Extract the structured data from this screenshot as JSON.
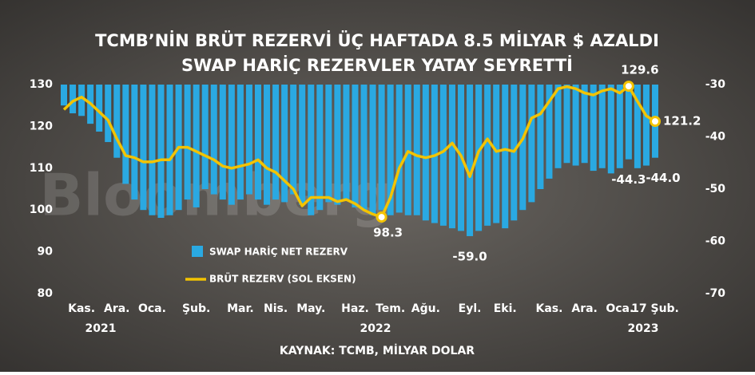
{
  "chart_data": {
    "type": "bar-line",
    "title": "TCMB’NİN BRÜT REZERVİ ÜÇ HAFTADA 8.5 MİLYAR $ AZALDI",
    "subtitle": "SWAP HARİÇ REZERVLER YATAY SEYRETTİ",
    "source": "KAYNAK: TCMB, MİLYAR DOLAR",
    "watermark": "Bloomberg",
    "year_labels": [
      "2021",
      "2022",
      "2023"
    ],
    "categories": [
      null,
      null,
      "Kas.",
      null,
      null,
      null,
      "Ara.",
      null,
      null,
      null,
      "Oca.",
      null,
      null,
      null,
      null,
      "Şub.",
      null,
      null,
      null,
      null,
      "Mar.",
      null,
      null,
      null,
      "Nis.",
      null,
      null,
      null,
      "May.",
      null,
      null,
      null,
      null,
      "Haz.",
      null,
      null,
      null,
      "Tem.",
      null,
      null,
      null,
      "Ağu.",
      null,
      null,
      null,
      null,
      "Eyl.",
      null,
      null,
      null,
      "Eki.",
      null,
      null,
      null,
      null,
      "Kas.",
      null,
      null,
      null,
      "Ara.",
      null,
      null,
      null,
      "Oca.",
      null,
      null,
      null,
      "17 Şub."
    ],
    "series": [
      {
        "name": "SWAP HARİÇ NET REZERV",
        "type": "bar",
        "axis": "y2",
        "color": "#2aa9e2",
        "values": [
          -34,
          -35.5,
          -36,
          -37.5,
          -39,
          -41,
          -44,
          -49,
          -52,
          -54,
          -55,
          -55.5,
          -55,
          -54,
          -52,
          -53.5,
          -50,
          -51,
          -52,
          -53,
          -52,
          -51,
          -52,
          -53,
          -52,
          -52.5,
          -51,
          -53,
          -55,
          -54,
          -52.5,
          -53,
          -52,
          -53.5,
          -54,
          -55,
          -54,
          -55,
          -54.5,
          -55,
          -55,
          -56,
          -56.5,
          -57,
          -57.5,
          -58,
          -59,
          -58,
          -57,
          -56.5,
          -57.5,
          -56,
          -54,
          -52.5,
          -50,
          -48,
          -46,
          -45,
          -45.5,
          -45,
          -46.5,
          -46,
          -47,
          -46,
          -44.3,
          -46,
          -45.5,
          -44
        ],
        "value_labels": [
          null,
          null,
          null,
          null,
          null,
          null,
          null,
          null,
          null,
          null,
          null,
          null,
          null,
          null,
          null,
          null,
          null,
          null,
          null,
          null,
          null,
          null,
          null,
          null,
          null,
          null,
          null,
          null,
          null,
          null,
          null,
          null,
          null,
          null,
          null,
          null,
          null,
          null,
          null,
          null,
          null,
          null,
          null,
          null,
          null,
          null,
          "-59.0",
          null,
          null,
          null,
          null,
          null,
          null,
          null,
          null,
          null,
          null,
          null,
          null,
          null,
          null,
          null,
          null,
          null,
          "-44.3",
          null,
          null,
          "-44.0"
        ]
      },
      {
        "name": "BRÜT REZERV (SOL EKSEN)",
        "type": "line",
        "axis": "y",
        "color": "#f3c300",
        "values": [
          124,
          126,
          127,
          125.5,
          123.5,
          121.5,
          117,
          113,
          112.5,
          111.5,
          111.5,
          112,
          112,
          115,
          115,
          114,
          113,
          112,
          110.5,
          110,
          110.5,
          111,
          112,
          110,
          109,
          107,
          105,
          101,
          103,
          103,
          103,
          102,
          102.5,
          101.5,
          100,
          99,
          98.3,
          103,
          110,
          114,
          113,
          112.5,
          113,
          114,
          116,
          113,
          108,
          114,
          117,
          114,
          114.5,
          114,
          117,
          122,
          123,
          126,
          129,
          129.5,
          129,
          128,
          127.5,
          128.5,
          129,
          128,
          129.6,
          126,
          122.5,
          121.2
        ],
        "value_labels": [
          null,
          null,
          null,
          null,
          null,
          null,
          null,
          null,
          null,
          null,
          null,
          null,
          null,
          null,
          null,
          null,
          null,
          null,
          null,
          null,
          null,
          null,
          null,
          null,
          null,
          null,
          null,
          null,
          null,
          null,
          null,
          null,
          null,
          null,
          null,
          null,
          "98.3",
          null,
          null,
          null,
          null,
          null,
          null,
          null,
          null,
          null,
          null,
          null,
          null,
          null,
          null,
          null,
          null,
          null,
          null,
          null,
          null,
          null,
          null,
          null,
          null,
          null,
          null,
          null,
          "129.6",
          null,
          null,
          "121.2"
        ]
      }
    ],
    "ylim": [
      80,
      130
    ],
    "yticks": [
      80,
      90,
      100,
      110,
      120,
      130
    ],
    "y2lim": [
      -70,
      -30
    ],
    "y2ticks": [
      -70,
      -60,
      -50,
      -40,
      -30
    ]
  }
}
